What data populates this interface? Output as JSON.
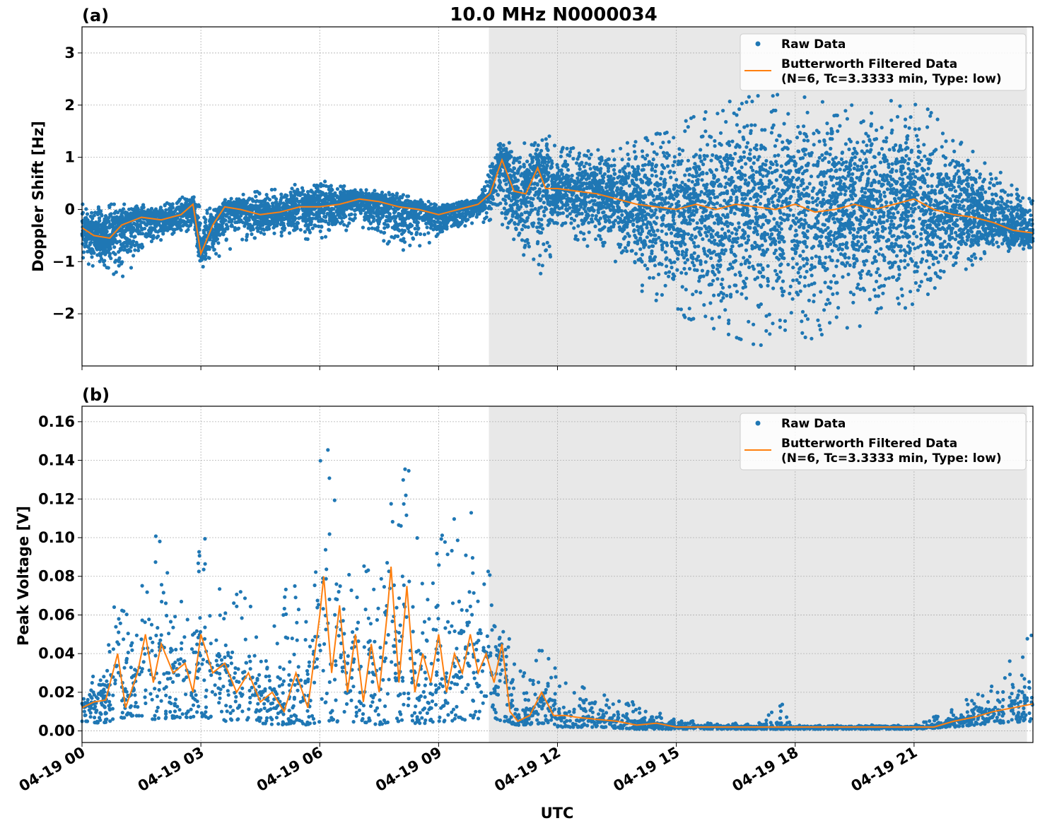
{
  "chart_data": [
    {
      "type": "scatter",
      "panel_label": "(a)",
      "title": "10.0 MHz N0000034",
      "ylabel": "Doppler Shift [Hz]",
      "xlabel": "",
      "xlim": [
        0,
        24
      ],
      "ylim": [
        -3.0,
        3.5
      ],
      "y_ticks": [
        -2,
        -1,
        0,
        1,
        2,
        3
      ],
      "y_tick_labels": [
        "−2",
        "−1",
        "0",
        "1",
        "2",
        "3"
      ],
      "grid": true,
      "legend_position": "top-right",
      "night_shading": {
        "x_start": 10.27,
        "x_end": 23.85,
        "color": "#e8e8e8"
      },
      "series": [
        {
          "name": "Raw Data",
          "kind": "scatter",
          "color": "#1f77b4",
          "envelope": {
            "x": [
              0.0,
              1.0,
              2.0,
              2.8,
              3.0,
              4.0,
              5.0,
              6.0,
              7.0,
              8.0,
              9.0,
              10.0,
              10.6,
              11.0,
              11.7,
              12.0,
              13.0,
              14.0,
              15.0,
              16.0,
              17.0,
              18.0,
              19.0,
              20.0,
              21.0,
              22.0,
              23.0,
              24.0
            ],
            "upper": [
              0.1,
              0.1,
              0.1,
              0.3,
              0.0,
              0.3,
              0.4,
              0.6,
              0.4,
              0.3,
              0.1,
              0.2,
              1.5,
              1.2,
              1.5,
              1.2,
              1.2,
              1.3,
              1.6,
              2.0,
              2.2,
              2.2,
              2.0,
              2.0,
              2.2,
              1.4,
              0.8,
              0.3
            ],
            "lower": [
              -1.0,
              -1.3,
              -0.6,
              -0.5,
              -1.2,
              -0.6,
              -0.5,
              -0.6,
              -0.3,
              -0.8,
              -0.6,
              -0.2,
              -0.4,
              -0.9,
              -1.3,
              -0.4,
              -0.8,
              -1.5,
              -2.0,
              -2.3,
              -2.6,
              -2.6,
              -2.3,
              -2.2,
              -1.8,
              -1.3,
              -0.8,
              -0.8
            ]
          }
        },
        {
          "name": "Butterworth Filtered Data\n(N=6, Tc=3.3333 min, Type: low)",
          "kind": "line",
          "color": "#ff7f0e",
          "x": [
            0.0,
            0.3,
            0.7,
            1.0,
            1.5,
            2.0,
            2.5,
            2.8,
            3.0,
            3.3,
            3.6,
            4.0,
            4.5,
            5.0,
            5.5,
            6.0,
            6.5,
            7.0,
            7.5,
            8.0,
            8.5,
            9.0,
            9.5,
            10.0,
            10.3,
            10.6,
            10.9,
            11.2,
            11.5,
            11.7,
            12.0,
            12.5,
            13.0,
            13.5,
            14.0,
            14.5,
            15.0,
            15.5,
            16.0,
            16.5,
            17.0,
            17.5,
            18.0,
            18.5,
            19.0,
            19.5,
            20.0,
            20.5,
            21.0,
            21.5,
            22.0,
            22.5,
            23.0,
            23.5,
            24.0
          ],
          "y": [
            -0.35,
            -0.5,
            -0.55,
            -0.3,
            -0.15,
            -0.2,
            -0.1,
            0.1,
            -0.85,
            -0.3,
            0.05,
            0.0,
            -0.1,
            -0.05,
            0.05,
            0.05,
            0.1,
            0.2,
            0.15,
            0.05,
            0.0,
            -0.1,
            0.0,
            0.1,
            0.3,
            0.95,
            0.35,
            0.3,
            0.8,
            0.4,
            0.4,
            0.35,
            0.3,
            0.2,
            0.1,
            0.05,
            0.0,
            0.1,
            0.0,
            0.1,
            0.05,
            0.0,
            0.1,
            -0.05,
            0.0,
            0.1,
            0.0,
            0.1,
            0.2,
            0.0,
            -0.1,
            -0.15,
            -0.25,
            -0.4,
            -0.45
          ]
        }
      ]
    },
    {
      "type": "scatter",
      "panel_label": "(b)",
      "title": "",
      "ylabel": "Peak Voltage [V]",
      "xlabel": "UTC",
      "xlim": [
        0,
        24
      ],
      "ylim": [
        -0.006,
        0.168
      ],
      "y_ticks": [
        0.0,
        0.02,
        0.04,
        0.06,
        0.08,
        0.1,
        0.12,
        0.14,
        0.16
      ],
      "y_tick_labels": [
        "0.00",
        "0.02",
        "0.04",
        "0.06",
        "0.08",
        "0.10",
        "0.12",
        "0.14",
        "0.16"
      ],
      "x_ticks": [
        0,
        3,
        6,
        9,
        12,
        15,
        18,
        21
      ],
      "x_tick_labels": [
        "04-19 00",
        "04-19 03",
        "04-19 06",
        "04-19 09",
        "04-19 12",
        "04-19 15",
        "04-19 18",
        "04-19 21"
      ],
      "grid": true,
      "legend_position": "top-right",
      "night_shading": {
        "x_start": 10.27,
        "x_end": 23.85,
        "color": "#e8e8e8"
      },
      "series": [
        {
          "name": "Raw Data",
          "kind": "scatter",
          "color": "#1f77b4",
          "envelope": {
            "x": [
              0.0,
              0.5,
              0.9,
              1.3,
              1.8,
              2.5,
              3.1,
              3.6,
              4.0,
              4.5,
              5.0,
              5.3,
              5.6,
              6.1,
              6.5,
              7.0,
              7.5,
              7.8,
              8.0,
              8.3,
              8.7,
              9.3,
              9.8,
              10.3,
              10.6,
              11.0,
              11.7,
              12.0,
              13.0,
              14.0,
              15.0,
              16.0,
              17.0,
              17.7,
              18.0,
              19.0,
              20.0,
              21.0,
              22.0,
              23.0,
              24.0
            ],
            "upper": [
              0.027,
              0.03,
              0.083,
              0.06,
              0.112,
              0.07,
              0.103,
              0.065,
              0.085,
              0.045,
              0.06,
              0.088,
              0.05,
              0.16,
              0.105,
              0.09,
              0.085,
              0.138,
              0.15,
              0.152,
              0.07,
              0.128,
              0.118,
              0.095,
              0.065,
              0.03,
              0.045,
              0.03,
              0.02,
              0.017,
              0.006,
              0.004,
              0.004,
              0.015,
              0.003,
              0.003,
              0.003,
              0.003,
              0.012,
              0.025,
              0.052
            ],
            "lower": [
              0.005,
              0.004,
              0.006,
              0.008,
              0.006,
              0.007,
              0.007,
              0.005,
              0.006,
              0.004,
              0.003,
              0.004,
              0.003,
              0.005,
              0.004,
              0.005,
              0.003,
              0.005,
              0.005,
              0.004,
              0.004,
              0.005,
              0.006,
              0.006,
              0.005,
              0.003,
              0.004,
              0.002,
              0.002,
              0.001,
              0.001,
              0.001,
              0.001,
              0.001,
              0.001,
              0.001,
              0.001,
              0.001,
              0.002,
              0.004,
              0.005
            ]
          }
        },
        {
          "name": "Butterworth Filtered Data\n(N=6, Tc=3.3333 min, Type: low)",
          "kind": "line",
          "color": "#ff7f0e",
          "x": [
            0.0,
            0.3,
            0.6,
            0.9,
            1.1,
            1.4,
            1.6,
            1.8,
            2.0,
            2.3,
            2.6,
            2.8,
            3.0,
            3.3,
            3.6,
            3.9,
            4.2,
            4.5,
            4.8,
            5.1,
            5.4,
            5.7,
            6.0,
            6.1,
            6.3,
            6.5,
            6.7,
            6.9,
            7.1,
            7.3,
            7.5,
            7.7,
            7.8,
            8.0,
            8.2,
            8.4,
            8.6,
            8.8,
            9.0,
            9.2,
            9.4,
            9.6,
            9.8,
            10.0,
            10.2,
            10.4,
            10.6,
            10.8,
            11.0,
            11.3,
            11.6,
            11.9,
            12.2,
            12.5,
            13.0,
            13.5,
            14.0,
            14.5,
            15.0,
            16.0,
            17.0,
            17.7,
            18.0,
            19.0,
            20.0,
            21.0,
            21.5,
            22.0,
            22.5,
            23.0,
            23.5,
            24.0
          ],
          "y": [
            0.012,
            0.015,
            0.016,
            0.04,
            0.012,
            0.03,
            0.05,
            0.025,
            0.045,
            0.03,
            0.035,
            0.02,
            0.05,
            0.03,
            0.035,
            0.02,
            0.03,
            0.015,
            0.02,
            0.01,
            0.03,
            0.012,
            0.06,
            0.08,
            0.03,
            0.065,
            0.02,
            0.05,
            0.015,
            0.045,
            0.02,
            0.06,
            0.085,
            0.025,
            0.075,
            0.02,
            0.04,
            0.025,
            0.05,
            0.02,
            0.04,
            0.03,
            0.05,
            0.03,
            0.04,
            0.025,
            0.045,
            0.01,
            0.005,
            0.008,
            0.02,
            0.008,
            0.008,
            0.007,
            0.006,
            0.005,
            0.003,
            0.004,
            0.002,
            0.002,
            0.002,
            0.002,
            0.002,
            0.002,
            0.002,
            0.002,
            0.002,
            0.005,
            0.007,
            0.01,
            0.012,
            0.014
          ]
        }
      ]
    }
  ]
}
